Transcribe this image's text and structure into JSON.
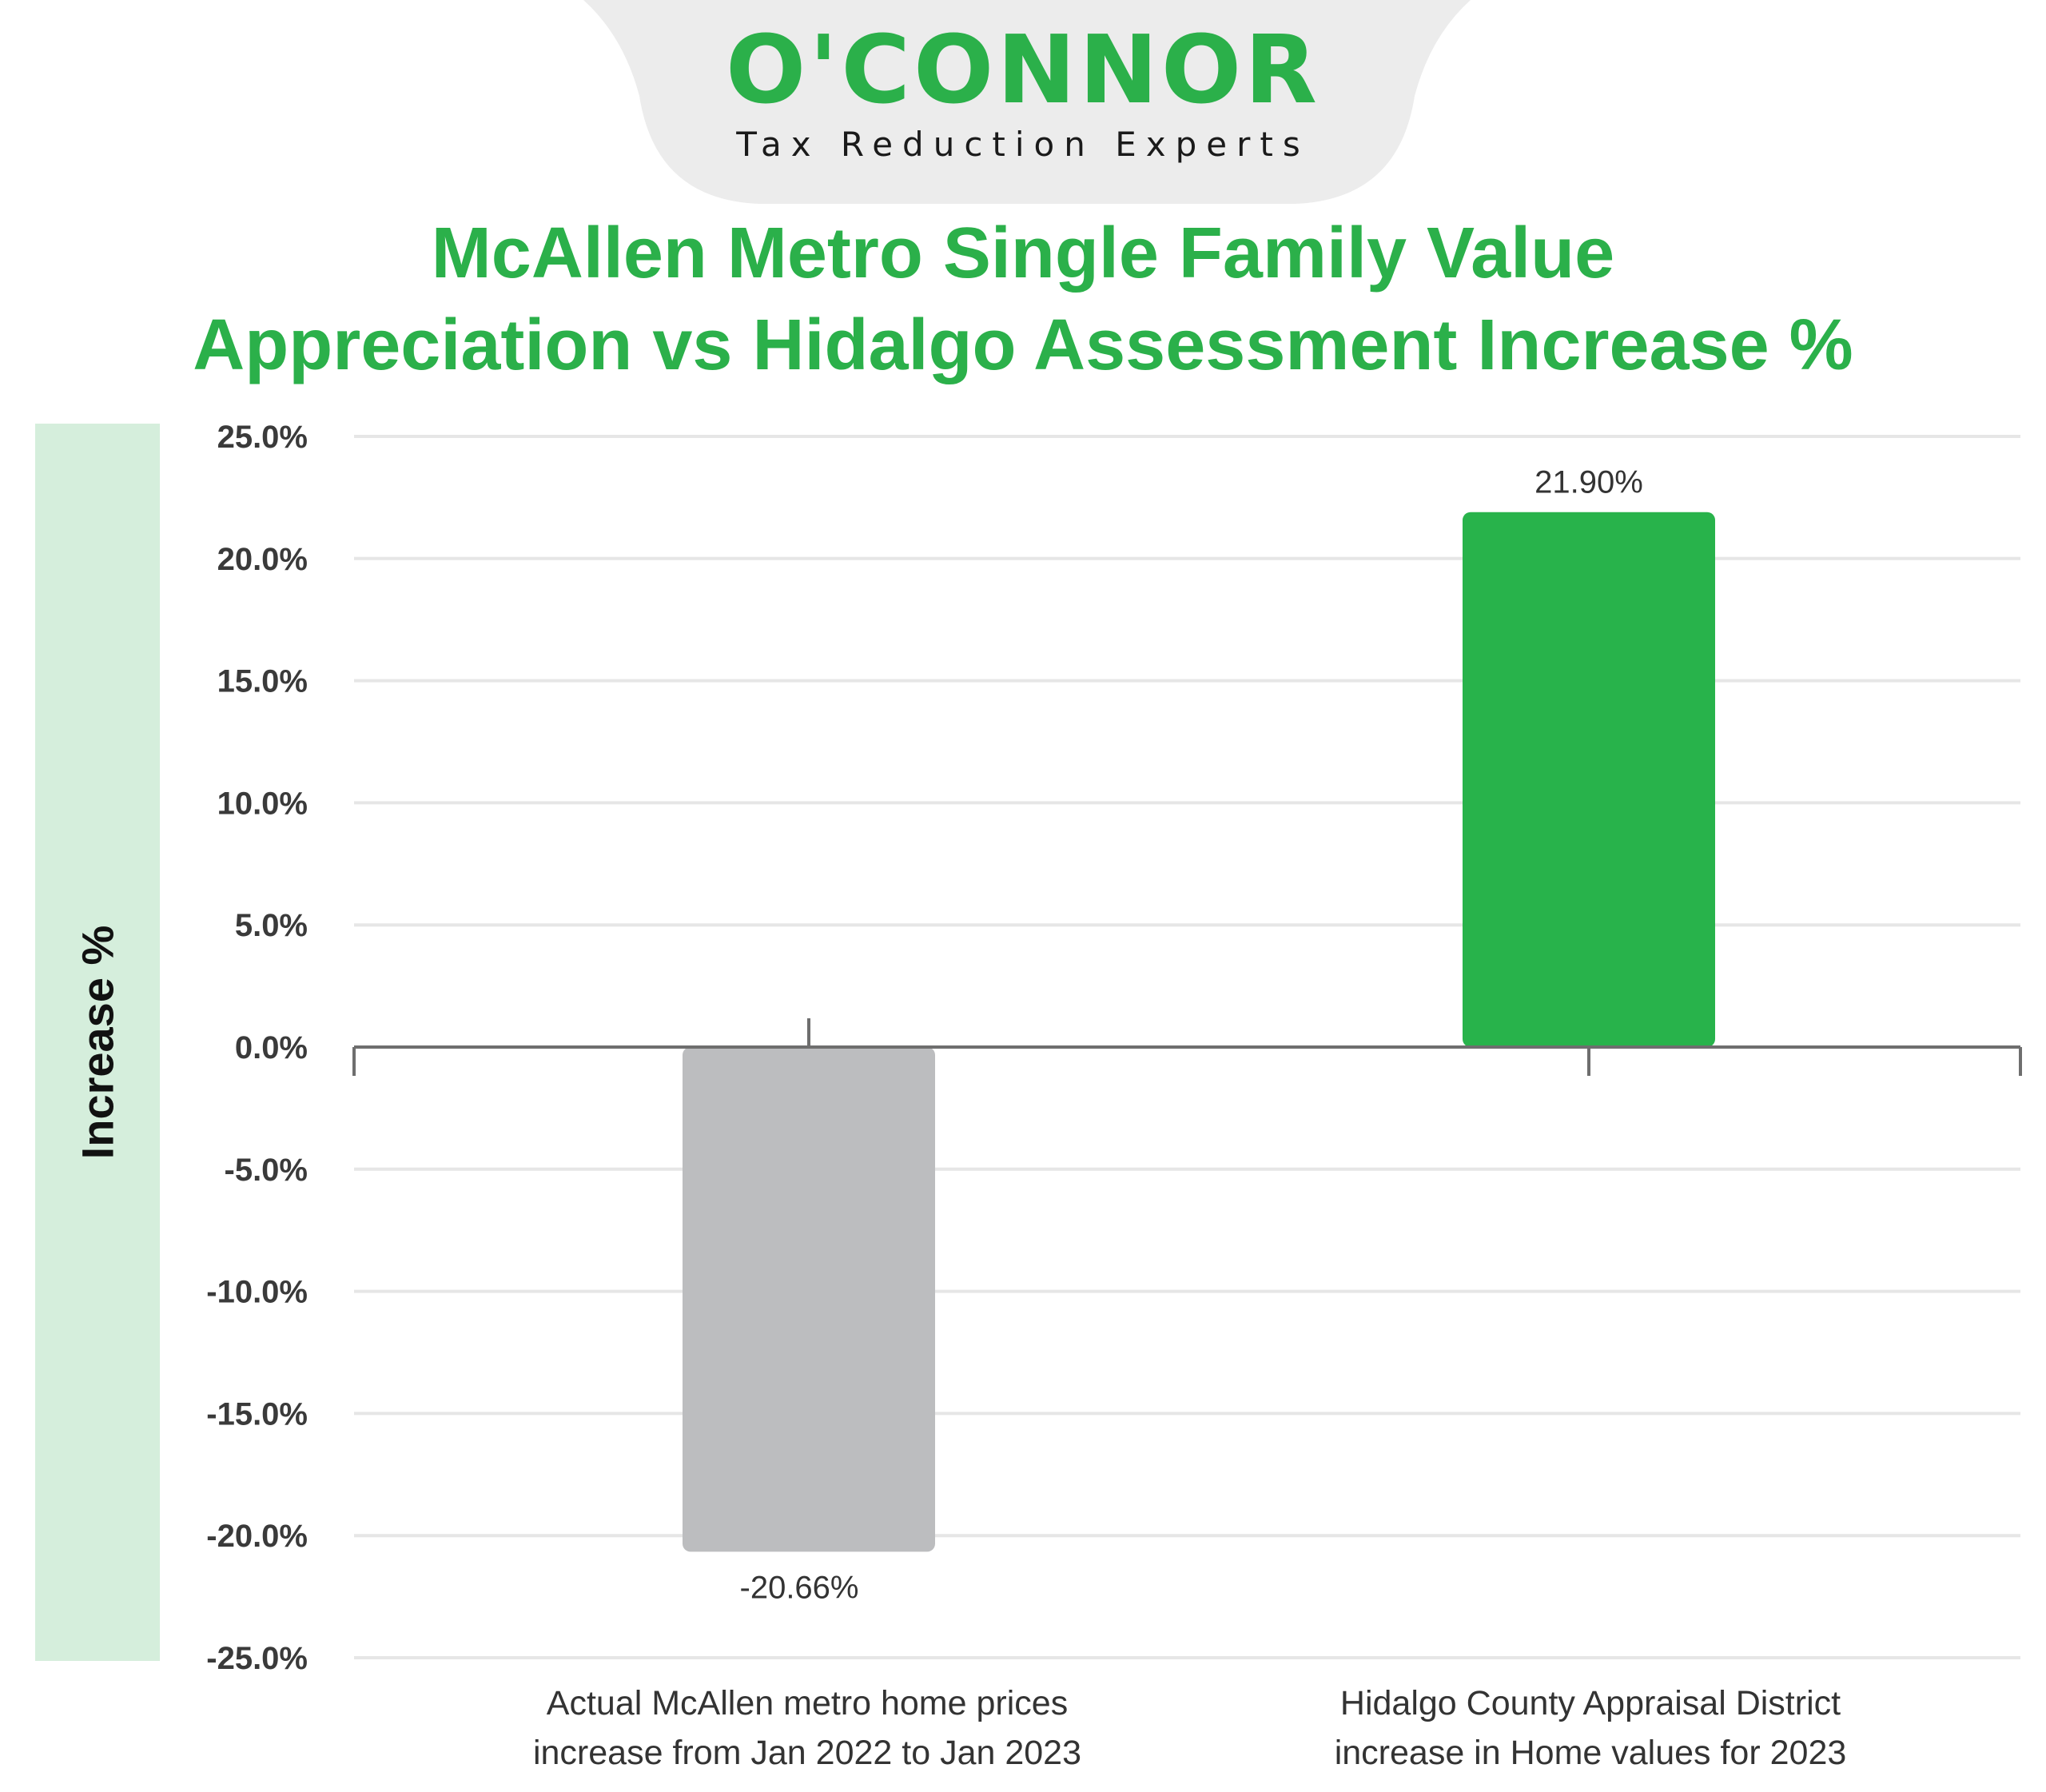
{
  "logo": {
    "wordmark": "O'CONNOR",
    "tagline": "Tax Reduction Experts"
  },
  "colors": {
    "brand_green": "#2bb04a",
    "negative_bar": "#bcbdbf",
    "positive_bar": "#28b34b",
    "ylabel_band": "#d5eedc",
    "grid": "#e6e6e6"
  },
  "chart_data": {
    "type": "bar",
    "title_lines": [
      "McAllen Metro Single Family Value",
      "Appreciation vs Hidalgo Assessment Increase %"
    ],
    "ylabel": "Increase %",
    "xlabel": "",
    "categories": [
      {
        "lines": [
          "Actual McAllen metro home prices",
          "increase from Jan 2022 to Jan 2023"
        ]
      },
      {
        "lines": [
          "Hidalgo County Appraisal District",
          "increase in Home values for 2023"
        ]
      }
    ],
    "values": [
      -20.66,
      21.9
    ],
    "value_labels": [
      "-20.66%",
      "21.90%"
    ],
    "ylim": [
      -25,
      25
    ],
    "yticks": [
      25,
      20,
      15,
      10,
      5,
      0,
      -5,
      -10,
      -15,
      -20,
      -25
    ],
    "ytick_labels": [
      "25.0%",
      "20.0%",
      "15.0%",
      "10.0%",
      "5.0%",
      "0.0%",
      "-5.0%",
      "-10.0%",
      "-15.0%",
      "-20.0%",
      "-25.0%"
    ],
    "grid": true,
    "legend": "none"
  }
}
